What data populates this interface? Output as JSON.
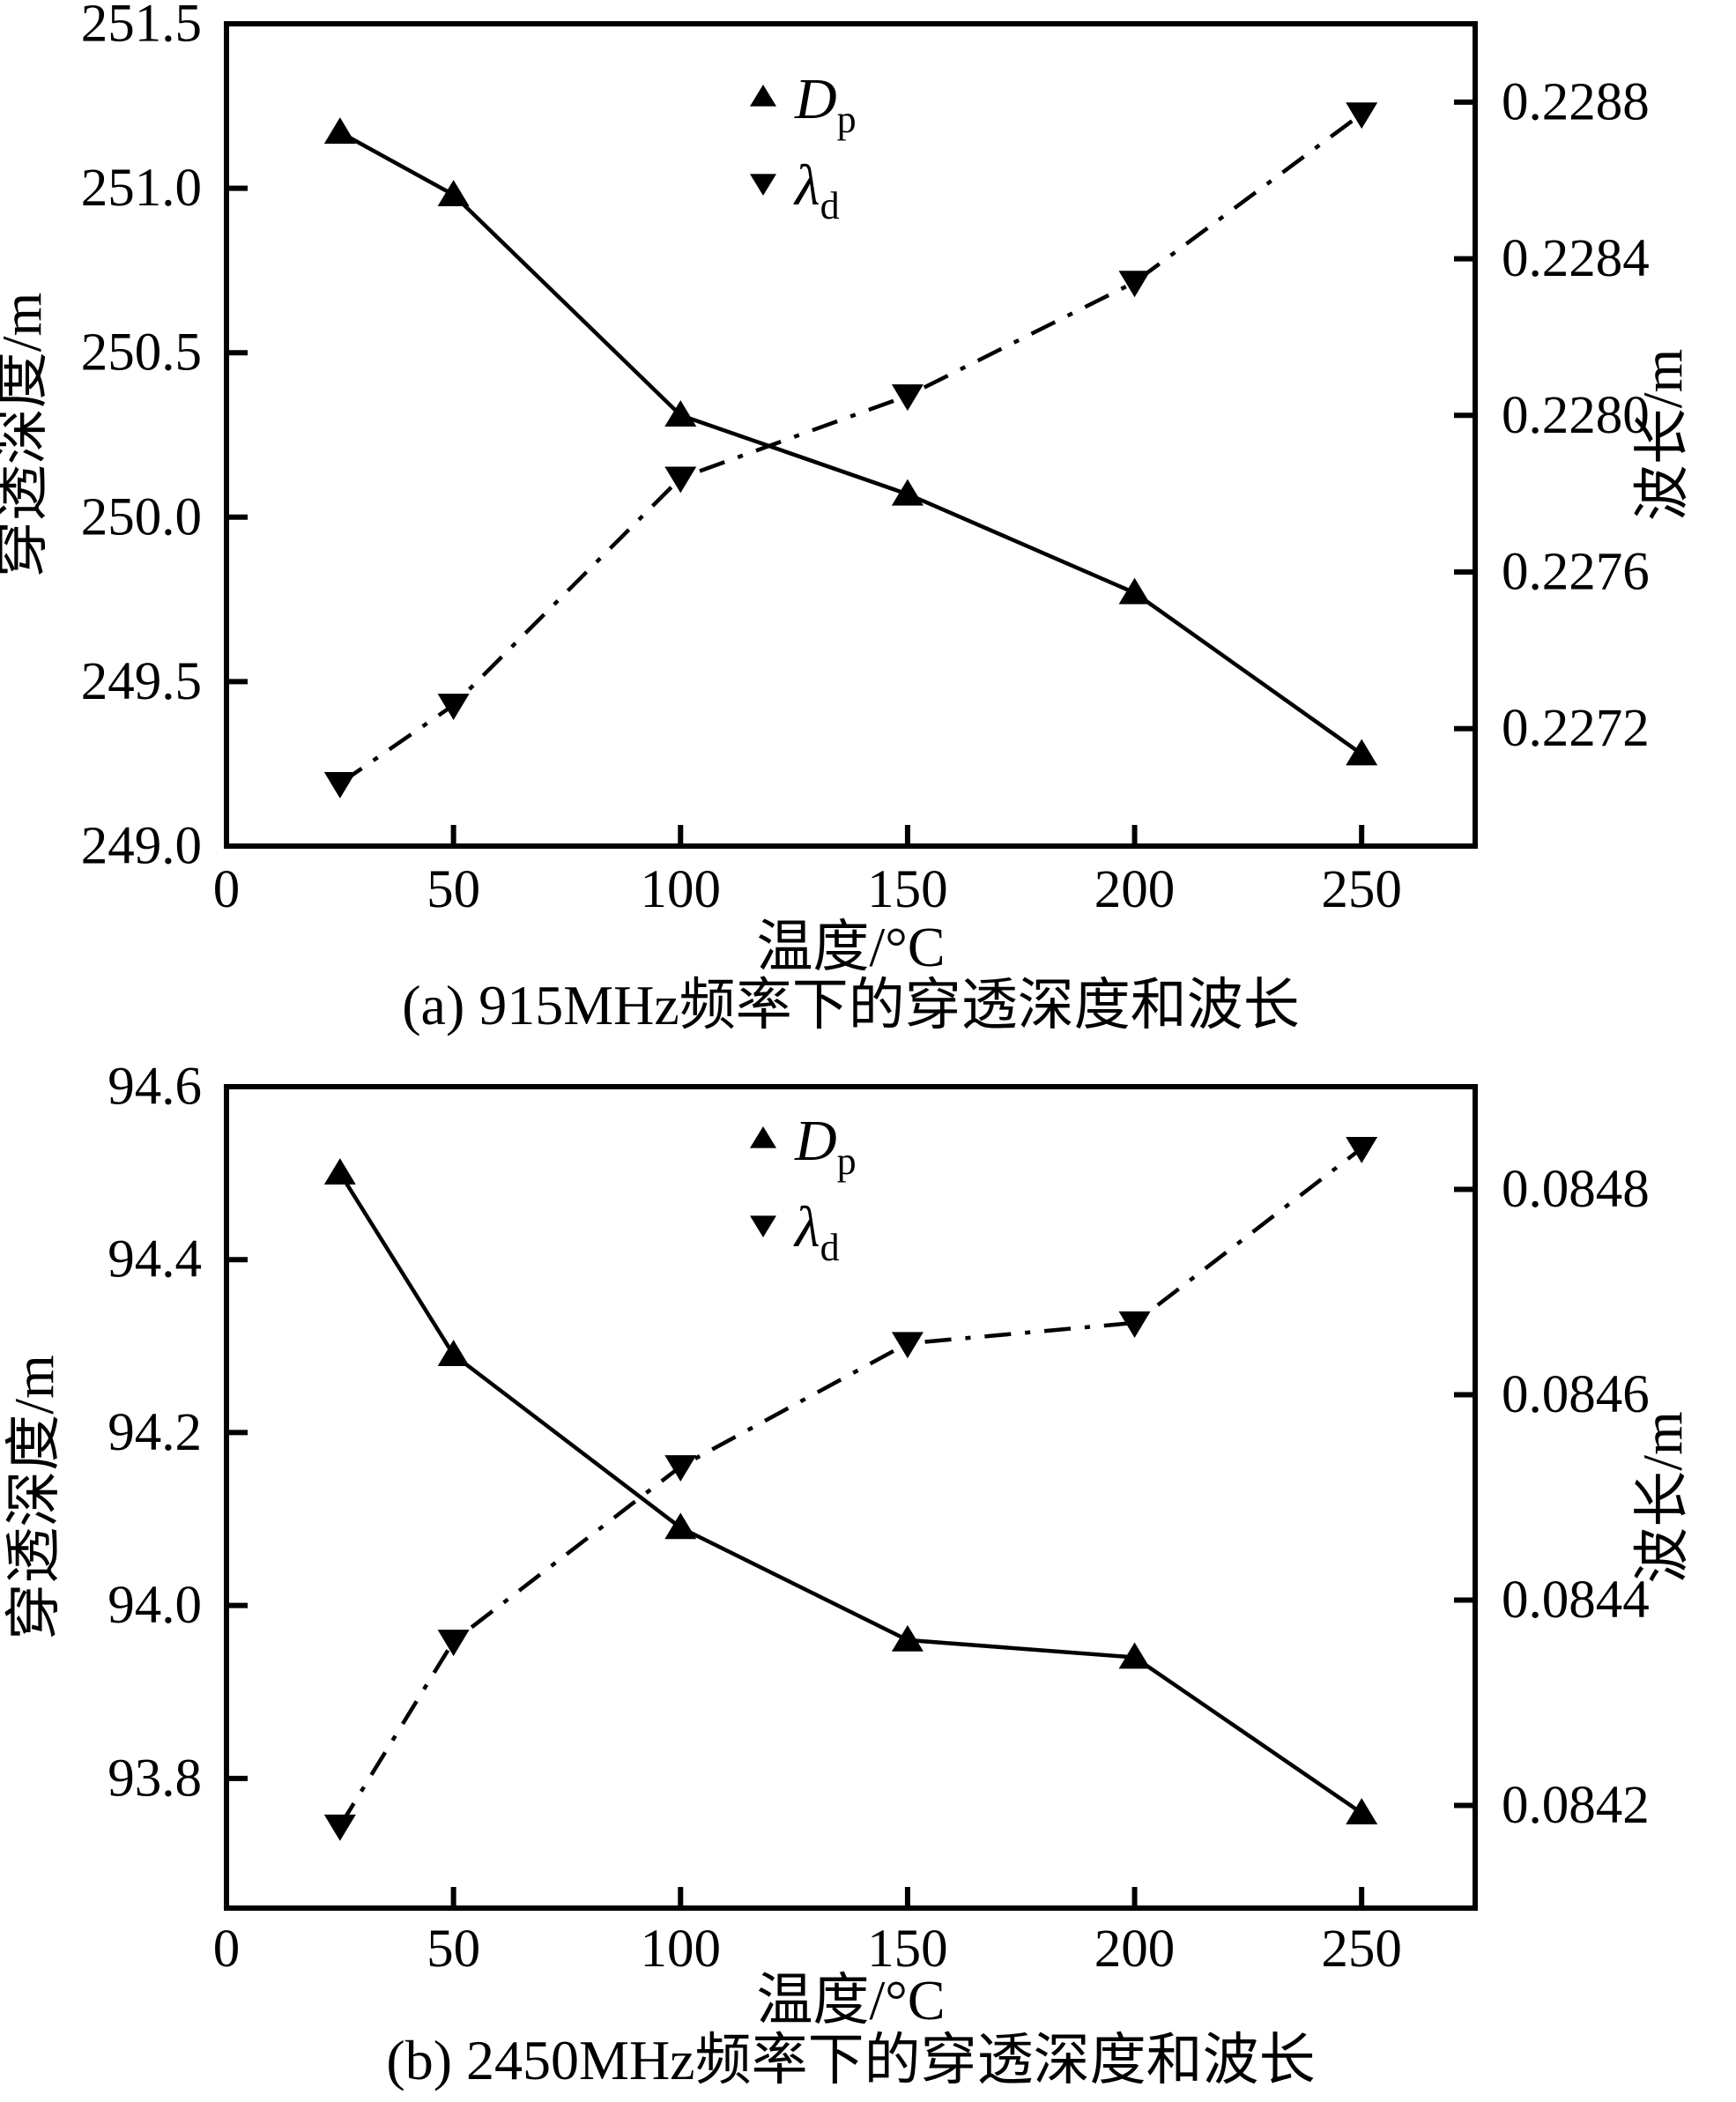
{
  "colors": {
    "ink": "#000000",
    "background": "#ffffff"
  },
  "chart_data": [
    {
      "id": "a",
      "type": "line",
      "caption": "(a) 915MHz频率下的穿透深度和波长",
      "xlabel": "温度/°C",
      "ylabel_left": "穿透深度/m",
      "ylabel_right": "波长/m",
      "legend_position": "top-center",
      "grid": false,
      "x_axis": {
        "min": 0,
        "max": 275,
        "tick_labels": [
          "0",
          "50",
          "100",
          "150",
          "200",
          "250"
        ]
      },
      "y_left_axis": {
        "min": 249.0,
        "max": 251.5,
        "tick_labels": [
          "249.0",
          "249.5",
          "250.0",
          "250.5",
          "251.0",
          "251.5"
        ]
      },
      "y_right_axis": {
        "min": 0.2269,
        "max": 0.229,
        "tick_labels": [
          "0.2272",
          "0.2276",
          "0.2280",
          "0.2284",
          "0.2288"
        ]
      },
      "x": [
        25,
        50,
        100,
        150,
        200,
        250
      ],
      "series": [
        {
          "name": "Dp",
          "legend_label": "D",
          "legend_sub": "p",
          "axis": "left",
          "line_style": "solid",
          "marker": "triangle-up",
          "values": [
            251.17,
            250.98,
            250.31,
            250.07,
            249.77,
            249.28
          ]
        },
        {
          "name": "lambda-d",
          "legend_label": "λ",
          "legend_sub": "d",
          "axis": "right",
          "line_style": "dash-dot",
          "marker": "triangle-down",
          "values": [
            0.22706,
            0.22726,
            0.22784,
            0.22805,
            0.22834,
            0.22877
          ]
        }
      ]
    },
    {
      "id": "b",
      "type": "line",
      "caption": "(b) 2450MHz频率下的穿透深度和波长",
      "xlabel": "温度/°C",
      "ylabel_left": "穿透深度/m",
      "ylabel_right": "波长/m",
      "legend_position": "top-center",
      "grid": false,
      "x_axis": {
        "min": 0,
        "max": 275,
        "tick_labels": [
          "0",
          "50",
          "100",
          "150",
          "200",
          "250"
        ]
      },
      "y_left_axis": {
        "min": 93.65,
        "max": 94.6,
        "tick_labels": [
          "93.8",
          "94.0",
          "94.2",
          "94.4",
          "94.6"
        ]
      },
      "y_right_axis": {
        "min": 0.0841,
        "max": 0.0849,
        "tick_labels": [
          "0.0842",
          "0.0844",
          "0.0846",
          "0.0848"
        ]
      },
      "x": [
        25,
        50,
        100,
        150,
        200,
        250
      ],
      "series": [
        {
          "name": "Dp",
          "legend_label": "D",
          "legend_sub": "p",
          "axis": "left",
          "line_style": "solid",
          "marker": "triangle-up",
          "values": [
            94.5,
            94.29,
            94.09,
            93.96,
            93.94,
            93.76
          ]
        },
        {
          "name": "lambda-d",
          "legend_label": "λ",
          "legend_sub": "d",
          "axis": "right",
          "line_style": "dash-dot",
          "marker": "triangle-down",
          "values": [
            0.08418,
            0.08436,
            0.08453,
            0.08465,
            0.08467,
            0.08484
          ]
        }
      ]
    }
  ]
}
